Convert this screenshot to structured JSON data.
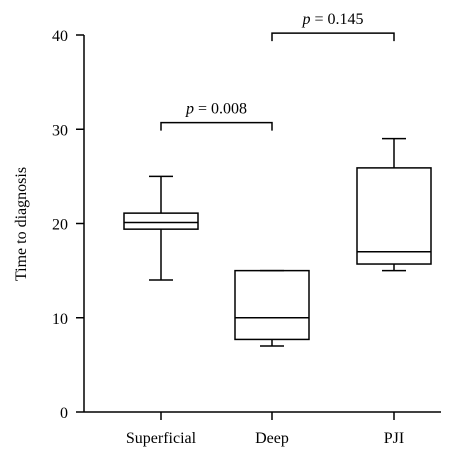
{
  "chart_data": {
    "type": "box",
    "title": "",
    "xlabel": "",
    "ylabel": "Time to diagnosis",
    "ylim": [
      0,
      40
    ],
    "yticks": [
      0,
      10,
      20,
      30,
      40
    ],
    "grid": false,
    "categories": [
      "Superficial",
      "Deep",
      "PJI"
    ],
    "boxes": [
      {
        "category": "Superficial",
        "min": 14,
        "q1": 19.4,
        "median": 20.1,
        "q3": 21.1,
        "max": 25
      },
      {
        "category": "Deep",
        "min": 7,
        "q1": 7.7,
        "median": 10,
        "q3": 15,
        "max": 15
      },
      {
        "category": "PJI",
        "min": 15,
        "q1": 15.7,
        "median": 17,
        "q3": 25.9,
        "max": 29
      }
    ],
    "comparisons": [
      {
        "groups": [
          "Superficial",
          "Deep"
        ],
        "label_p": "p",
        "label_rest": " = 0.008",
        "y": 30.7
      },
      {
        "groups": [
          "Deep",
          "PJI"
        ],
        "label_p": "p",
        "label_rest": " = 0.145",
        "y": 40.2
      }
    ]
  }
}
